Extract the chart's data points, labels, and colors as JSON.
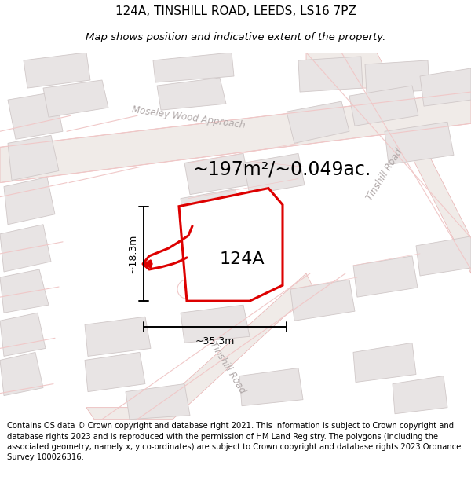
{
  "title_line1": "124A, TINSHILL ROAD, LEEDS, LS16 7PZ",
  "title_line2": "Map shows position and indicative extent of the property.",
  "area_text": "~197m²/~0.049ac.",
  "label_124a": "124A",
  "dim_width": "~35.3m",
  "dim_height": "~18.3m",
  "footer_text": "Contains OS data © Crown copyright and database right 2021. This information is subject to Crown copyright and database rights 2023 and is reproduced with the permission of HM Land Registry. The polygons (including the associated geometry, namely x, y co-ordinates) are subject to Crown copyright and database rights 2023 Ordnance Survey 100026316.",
  "bg_color": "#ffffff",
  "map_bg": "#f7f4f4",
  "road_color": "#f0c8c8",
  "road_outline": "#e8b0b0",
  "building_fill": "#e8e4e4",
  "building_outline": "#d0c8c8",
  "property_color": "#dd0000",
  "road_label_color": "#b0a8a8",
  "title_fontsize": 11,
  "subtitle_fontsize": 9.5,
  "footer_fontsize": 7.2,
  "area_fontsize": 17,
  "label_fontsize": 16,
  "dim_fontsize": 9
}
